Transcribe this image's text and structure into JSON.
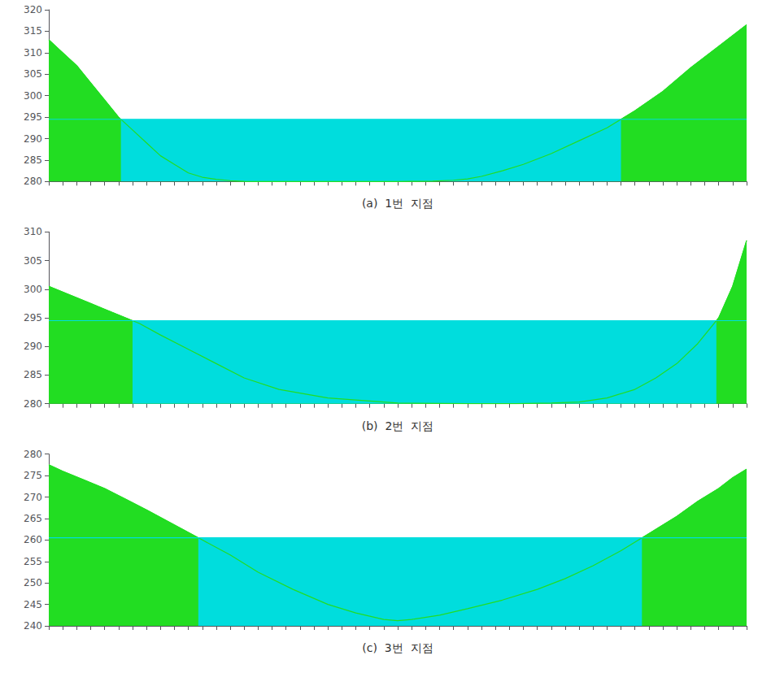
{
  "chart_data": [
    {
      "type": "area",
      "xlabel": "(a)  1번  지점",
      "xlim": [
        0,
        1
      ],
      "xticks": [
        0,
        0.02,
        0.04,
        0.06,
        0.08,
        0.1,
        0.12,
        0.14,
        0.16,
        0.18,
        0.2,
        0.22,
        0.24,
        0.26,
        0.28,
        0.3,
        0.32,
        0.34,
        0.36,
        0.38,
        0.4,
        0.42,
        0.44,
        0.46,
        0.48,
        0.5,
        0.52,
        0.54,
        0.56,
        0.58,
        0.6,
        0.62,
        0.64,
        0.66,
        0.68,
        0.7,
        0.72,
        0.74,
        0.76,
        0.78,
        0.8,
        0.82,
        0.84,
        0.86,
        0.88,
        0.9,
        0.92,
        0.94,
        0.96,
        0.98,
        1
      ],
      "ylim": [
        280,
        320
      ],
      "yticks": [
        280,
        285,
        290,
        295,
        300,
        305,
        310,
        315,
        320
      ],
      "tick_labels": "y",
      "grid": false,
      "x": [
        0,
        0.02,
        0.04,
        0.06,
        0.08,
        0.1,
        0.12,
        0.14,
        0.16,
        0.18,
        0.2,
        0.22,
        0.24,
        0.26,
        0.28,
        0.3,
        0.35,
        0.4,
        0.45,
        0.5,
        0.52,
        0.55,
        0.58,
        0.6,
        0.62,
        0.65,
        0.68,
        0.72,
        0.76,
        0.8,
        0.84,
        0.88,
        0.92,
        0.96,
        1.0
      ],
      "series": [
        {
          "type": "area",
          "color": "#22DD22",
          "values": [
            313,
            310,
            307,
            303,
            299,
            295,
            292,
            289,
            286,
            284,
            282,
            281,
            280.5,
            280.2,
            280.05,
            280.0,
            280.0,
            280.0,
            280.0,
            280.0,
            280.05,
            280.1,
            280.3,
            280.6,
            281.2,
            282.5,
            284.0,
            286.5,
            289.5,
            292.5,
            296.5,
            301.0,
            306.5,
            311.5,
            316.5
          ]
        },
        {
          "type": "water",
          "color": "#00DDDD",
          "level": 294.5
        }
      ]
    },
    {
      "type": "area",
      "xlabel": "(b)  2번  지점",
      "xlim": [
        0,
        1
      ],
      "xticks": [
        0,
        0.02,
        0.04,
        0.06,
        0.08,
        0.1,
        0.12,
        0.14,
        0.16,
        0.18,
        0.2,
        0.22,
        0.24,
        0.26,
        0.28,
        0.3,
        0.32,
        0.34,
        0.36,
        0.38,
        0.4,
        0.42,
        0.44,
        0.46,
        0.48,
        0.5,
        0.52,
        0.54,
        0.56,
        0.58,
        0.6,
        0.62,
        0.64,
        0.66,
        0.68,
        0.7,
        0.72,
        0.74,
        0.76,
        0.78,
        0.8,
        0.82,
        0.84,
        0.86,
        0.88,
        0.9,
        0.92,
        0.94,
        0.96,
        0.98,
        1
      ],
      "ylim": [
        280,
        310
      ],
      "yticks": [
        280,
        285,
        290,
        295,
        300,
        305,
        310
      ],
      "tick_labels": "y",
      "grid": false,
      "x": [
        0,
        0.02,
        0.04,
        0.06,
        0.08,
        0.1,
        0.13,
        0.16,
        0.2,
        0.24,
        0.28,
        0.33,
        0.4,
        0.5,
        0.6,
        0.67,
        0.72,
        0.76,
        0.8,
        0.84,
        0.87,
        0.9,
        0.93,
        0.96,
        0.98,
        1.0
      ],
      "series": [
        {
          "type": "area",
          "color": "#22DD22",
          "values": [
            300.5,
            299.5,
            298.5,
            297.5,
            296.5,
            295.5,
            294.0,
            292.0,
            289.5,
            287.0,
            284.5,
            282.5,
            281.0,
            280.1,
            280.0,
            280.0,
            280.1,
            280.3,
            281.0,
            282.5,
            284.5,
            287.0,
            290.5,
            295.0,
            300.5,
            308.5
          ]
        },
        {
          "type": "water",
          "color": "#00DDDD",
          "level": 294.5
        }
      ]
    },
    {
      "type": "area",
      "xlabel": "(c)  3번  지점",
      "xlim": [
        0,
        1
      ],
      "xticks": [
        0,
        0.02,
        0.04,
        0.06,
        0.08,
        0.1,
        0.12,
        0.14,
        0.16,
        0.18,
        0.2,
        0.22,
        0.24,
        0.26,
        0.28,
        0.3,
        0.32,
        0.34,
        0.36,
        0.38,
        0.4,
        0.42,
        0.44,
        0.46,
        0.48,
        0.5,
        0.52,
        0.54,
        0.56,
        0.58,
        0.6,
        0.62,
        0.64,
        0.66,
        0.68,
        0.7,
        0.72,
        0.74,
        0.76,
        0.78,
        0.8,
        0.82,
        0.84,
        0.86,
        0.88,
        0.9,
        0.92,
        0.94,
        0.96,
        0.98,
        1
      ],
      "ylim": [
        240,
        280
      ],
      "yticks": [
        240,
        245,
        250,
        255,
        260,
        265,
        270,
        275,
        280
      ],
      "tick_labels": "y",
      "grid": false,
      "x": [
        0,
        0.02,
        0.05,
        0.08,
        0.11,
        0.14,
        0.18,
        0.22,
        0.26,
        0.3,
        0.35,
        0.4,
        0.44,
        0.48,
        0.5,
        0.52,
        0.56,
        0.6,
        0.65,
        0.7,
        0.74,
        0.78,
        0.82,
        0.86,
        0.9,
        0.93,
        0.96,
        0.98,
        1.0
      ],
      "series": [
        {
          "type": "area",
          "color": "#22DD22",
          "values": [
            277.5,
            276.0,
            274.0,
            272.0,
            269.5,
            267.0,
            263.5,
            260.0,
            256.5,
            252.5,
            248.5,
            245.0,
            243.0,
            241.5,
            241.2,
            241.5,
            242.5,
            244.0,
            246.0,
            248.5,
            251.0,
            254.0,
            257.5,
            261.5,
            265.5,
            269.0,
            272.0,
            274.5,
            276.5
          ]
        },
        {
          "type": "water",
          "color": "#00DDDD",
          "level": 260.5
        }
      ]
    }
  ]
}
